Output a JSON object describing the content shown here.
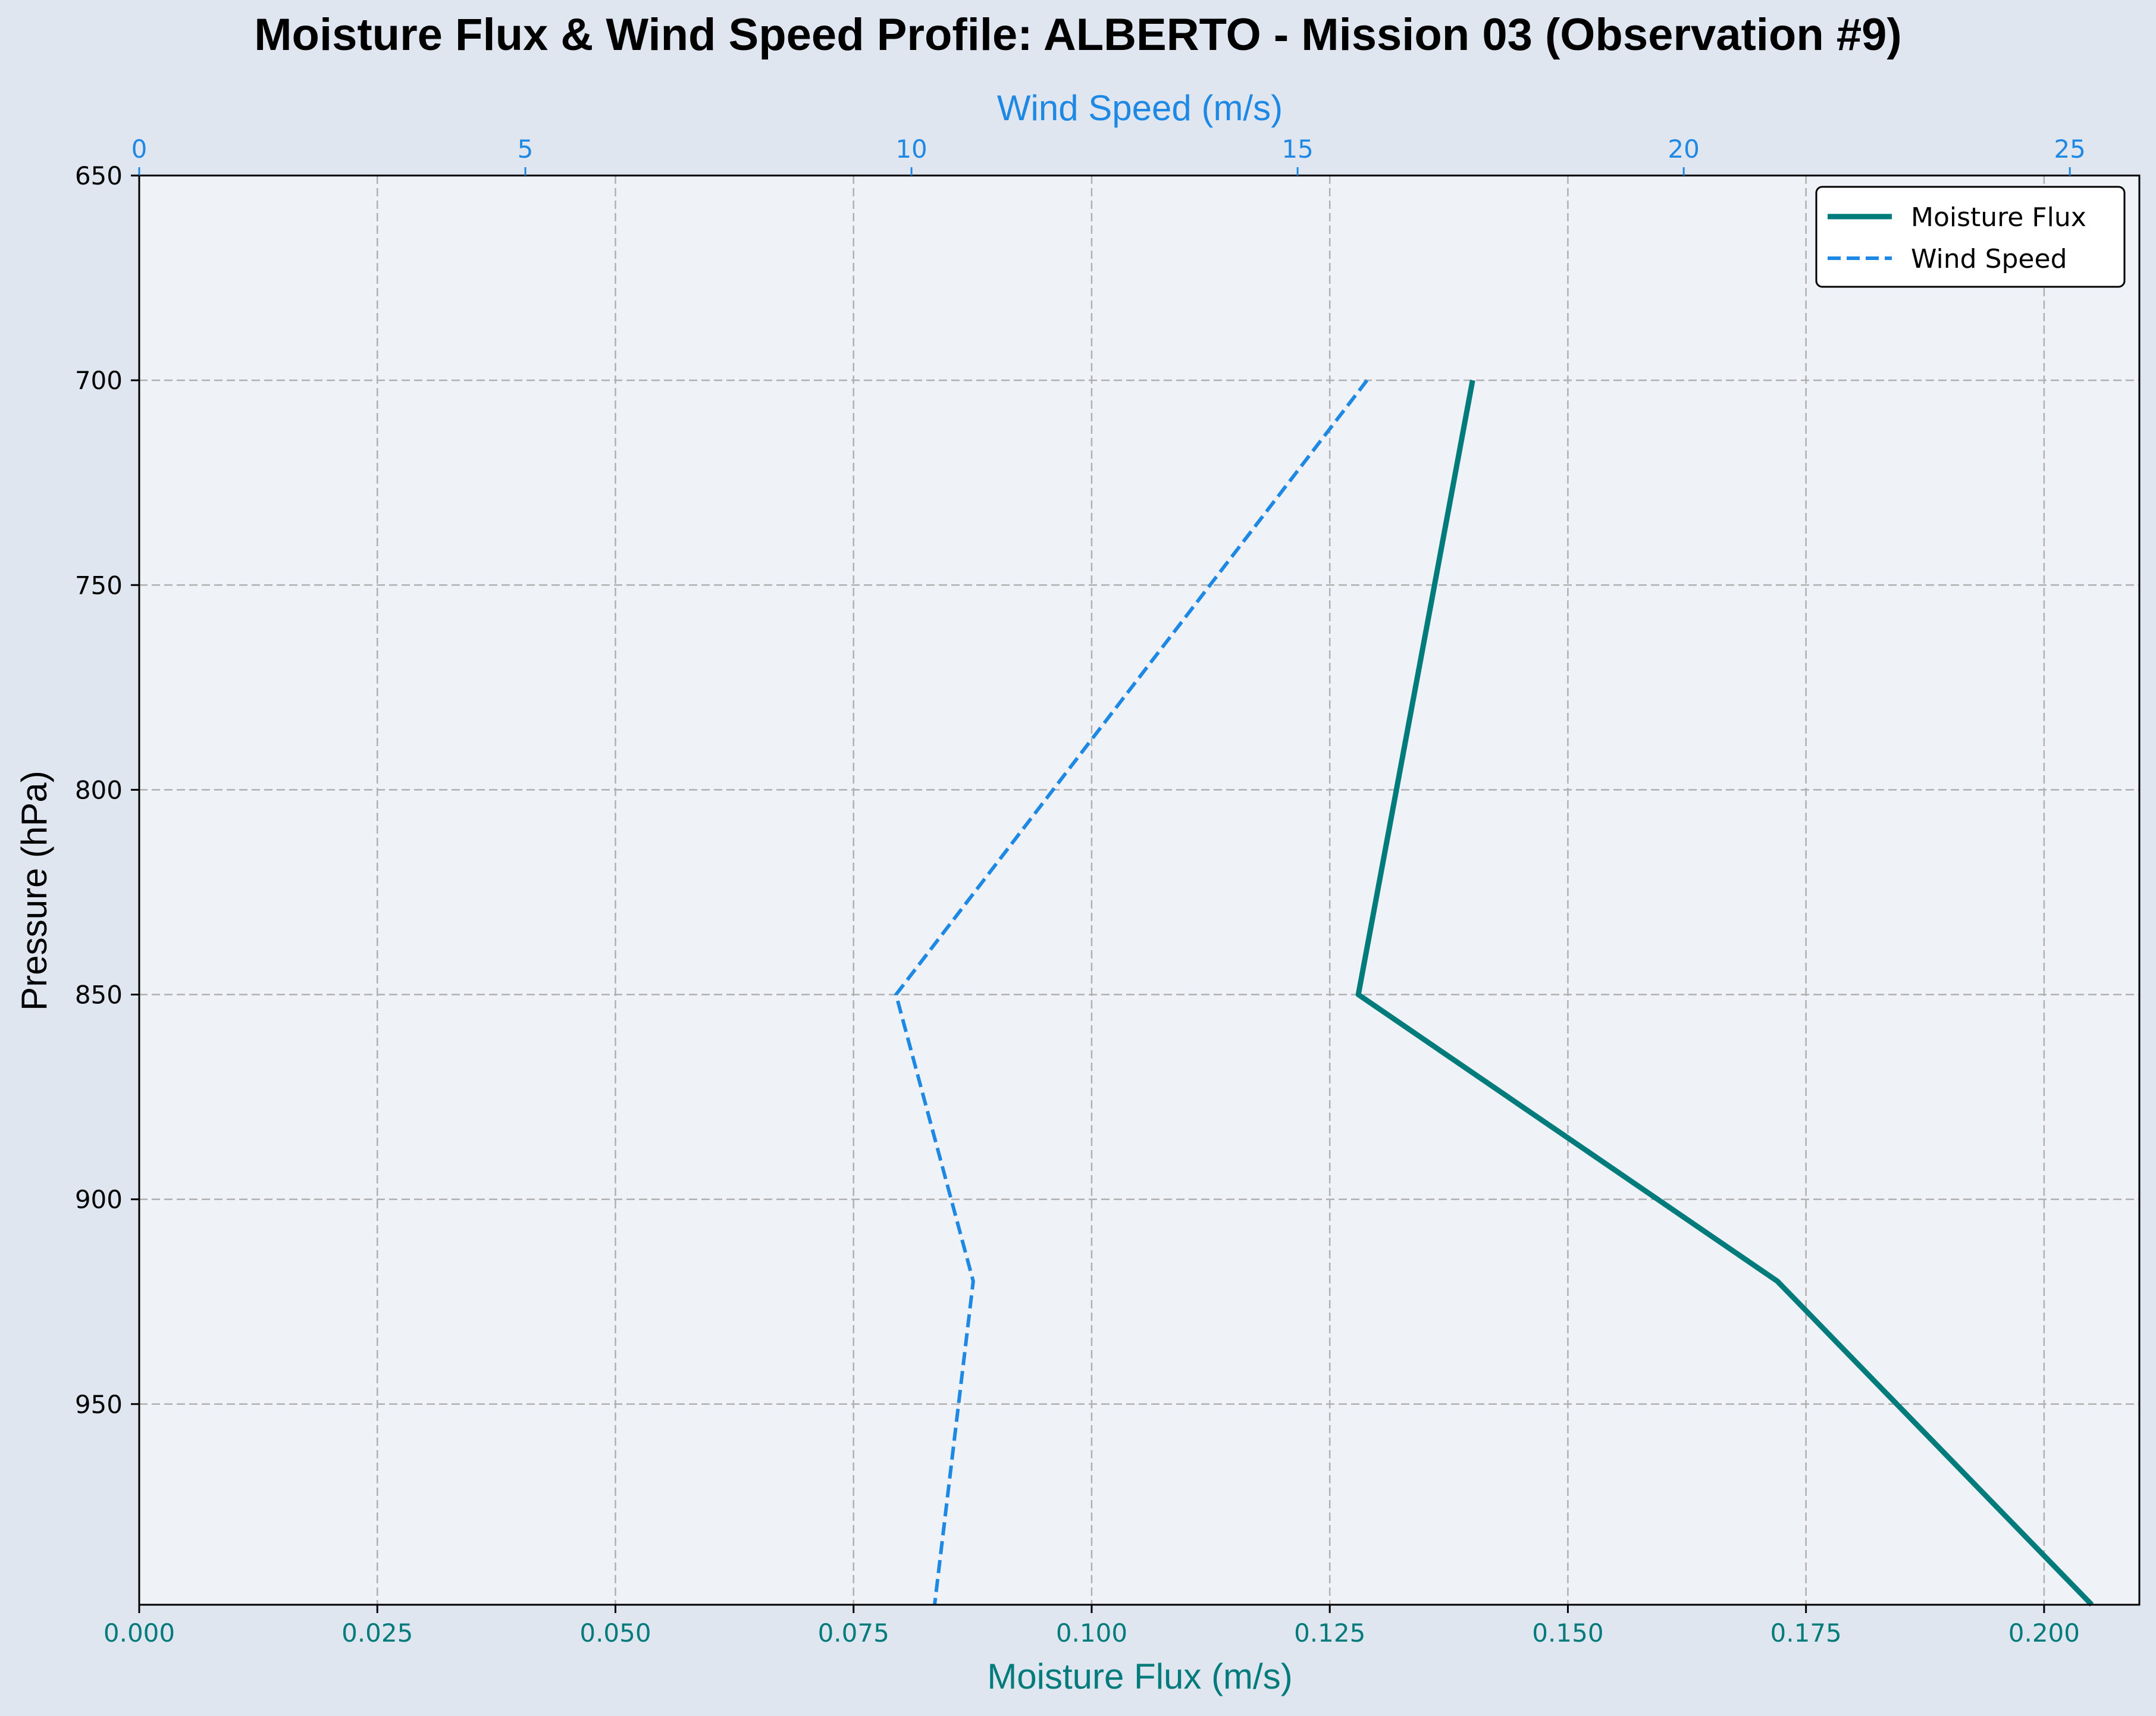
{
  "chart_data": {
    "type": "line",
    "title": "Moisture Flux & Wind Speed Profile: ALBERTO - Mission 03 (Observation #9)",
    "xlabel": "Moisture Flux (m/s)",
    "x2label": "Wind Speed (m/s)",
    "ylabel": "Pressure (hPa)",
    "xlim": [
      0,
      0.21
    ],
    "x2lim": [
      0,
      25.9
    ],
    "ylim": [
      999,
      650
    ],
    "y_inverted": true,
    "grid": true,
    "legend_position": "top-right",
    "xticks": [
      "0.000",
      "0.025",
      "0.050",
      "0.075",
      "0.100",
      "0.125",
      "0.150",
      "0.175",
      "0.200"
    ],
    "x2ticks": [
      "0",
      "5",
      "10",
      "15",
      "20",
      "25"
    ],
    "yticks": [
      "650",
      "700",
      "750",
      "800",
      "850",
      "900",
      "950"
    ],
    "colors": {
      "moisture_flux": "#007b7b",
      "wind_speed": "#1e88e5",
      "plot_bg": "#eff3f8",
      "figure_bg": "#dfe6f0",
      "grid": "#b0b0b0"
    },
    "series": [
      {
        "name": "Moisture Flux",
        "axis": "bottom",
        "style": "solid",
        "pressure": [
          700,
          850,
          920,
          999
        ],
        "values": [
          0.14,
          0.128,
          0.172,
          0.205
        ]
      },
      {
        "name": "Wind Speed",
        "axis": "top",
        "style": "dashed",
        "pressure": [
          700,
          850,
          920,
          999
        ],
        "values": [
          15.9,
          9.8,
          10.8,
          10.3
        ]
      }
    ]
  }
}
